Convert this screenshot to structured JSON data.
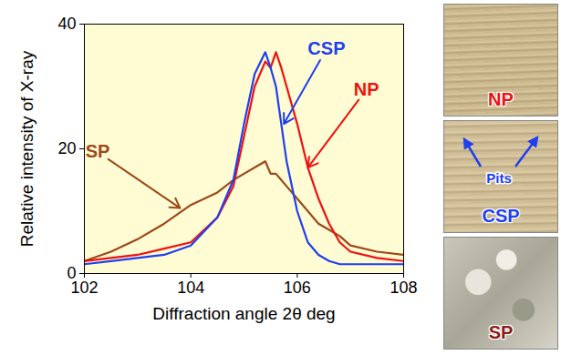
{
  "chart_data": {
    "type": "line",
    "x_label": "Diffraction angle 2θ deg",
    "y_label": "Relative intensity of X-ray",
    "xlim": [
      102,
      108
    ],
    "xticks": [
      102,
      104,
      106,
      108
    ],
    "ylim": [
      0,
      40
    ],
    "yticks": [
      0,
      20,
      40
    ],
    "grid": false,
    "x": [
      102,
      102.5,
      103,
      103.5,
      104,
      104.5,
      104.8,
      105.0,
      105.2,
      105.4,
      105.5,
      105.6,
      105.7,
      105.8,
      106.0,
      106.2,
      106.4,
      106.6,
      106.8,
      107,
      107.5,
      108
    ],
    "series": [
      {
        "name": "SP",
        "color": "#9c4a1a",
        "values": [
          2,
          3.5,
          5.5,
          8,
          11,
          13,
          15,
          16,
          17,
          18,
          16,
          16,
          15,
          14,
          12,
          10,
          8,
          7,
          6,
          4.5,
          3.5,
          3
        ]
      },
      {
        "name": "NP",
        "color": "#ee1111",
        "values": [
          2,
          2.5,
          3,
          4,
          5,
          9,
          14,
          22,
          30,
          34,
          33,
          35.5,
          33,
          30,
          24,
          17,
          12,
          8,
          5,
          3.5,
          2.5,
          2
        ]
      },
      {
        "name": "CSP",
        "color": "#1f3ff0",
        "values": [
          1.5,
          2,
          2.5,
          3,
          4.5,
          9,
          15,
          24,
          32,
          35.5,
          33,
          30,
          24,
          18,
          10,
          5,
          3,
          2,
          1.5,
          1.5,
          1.5,
          1.5
        ]
      }
    ],
    "annotations": [
      {
        "text": "CSP",
        "x": 106.55,
        "y": 36,
        "color": "#1f3ff0",
        "arrow_to": [
          105.75,
          24
        ]
      },
      {
        "text": "NP",
        "x": 107.3,
        "y": 29.5,
        "color": "#ee1111",
        "arrow_to": [
          106.2,
          17
        ]
      },
      {
        "text": "SP",
        "x": 102.25,
        "y": 19.5,
        "color": "#9c4a1a",
        "arrow_to": [
          103.8,
          10.5
        ]
      }
    ],
    "panels": [
      {
        "label": "NP",
        "color": "#ee1111"
      },
      {
        "label": "CSP",
        "color": "#1f3ff0",
        "note": "Pits"
      },
      {
        "label": "SP",
        "color": "#8b1a1a"
      }
    ]
  }
}
